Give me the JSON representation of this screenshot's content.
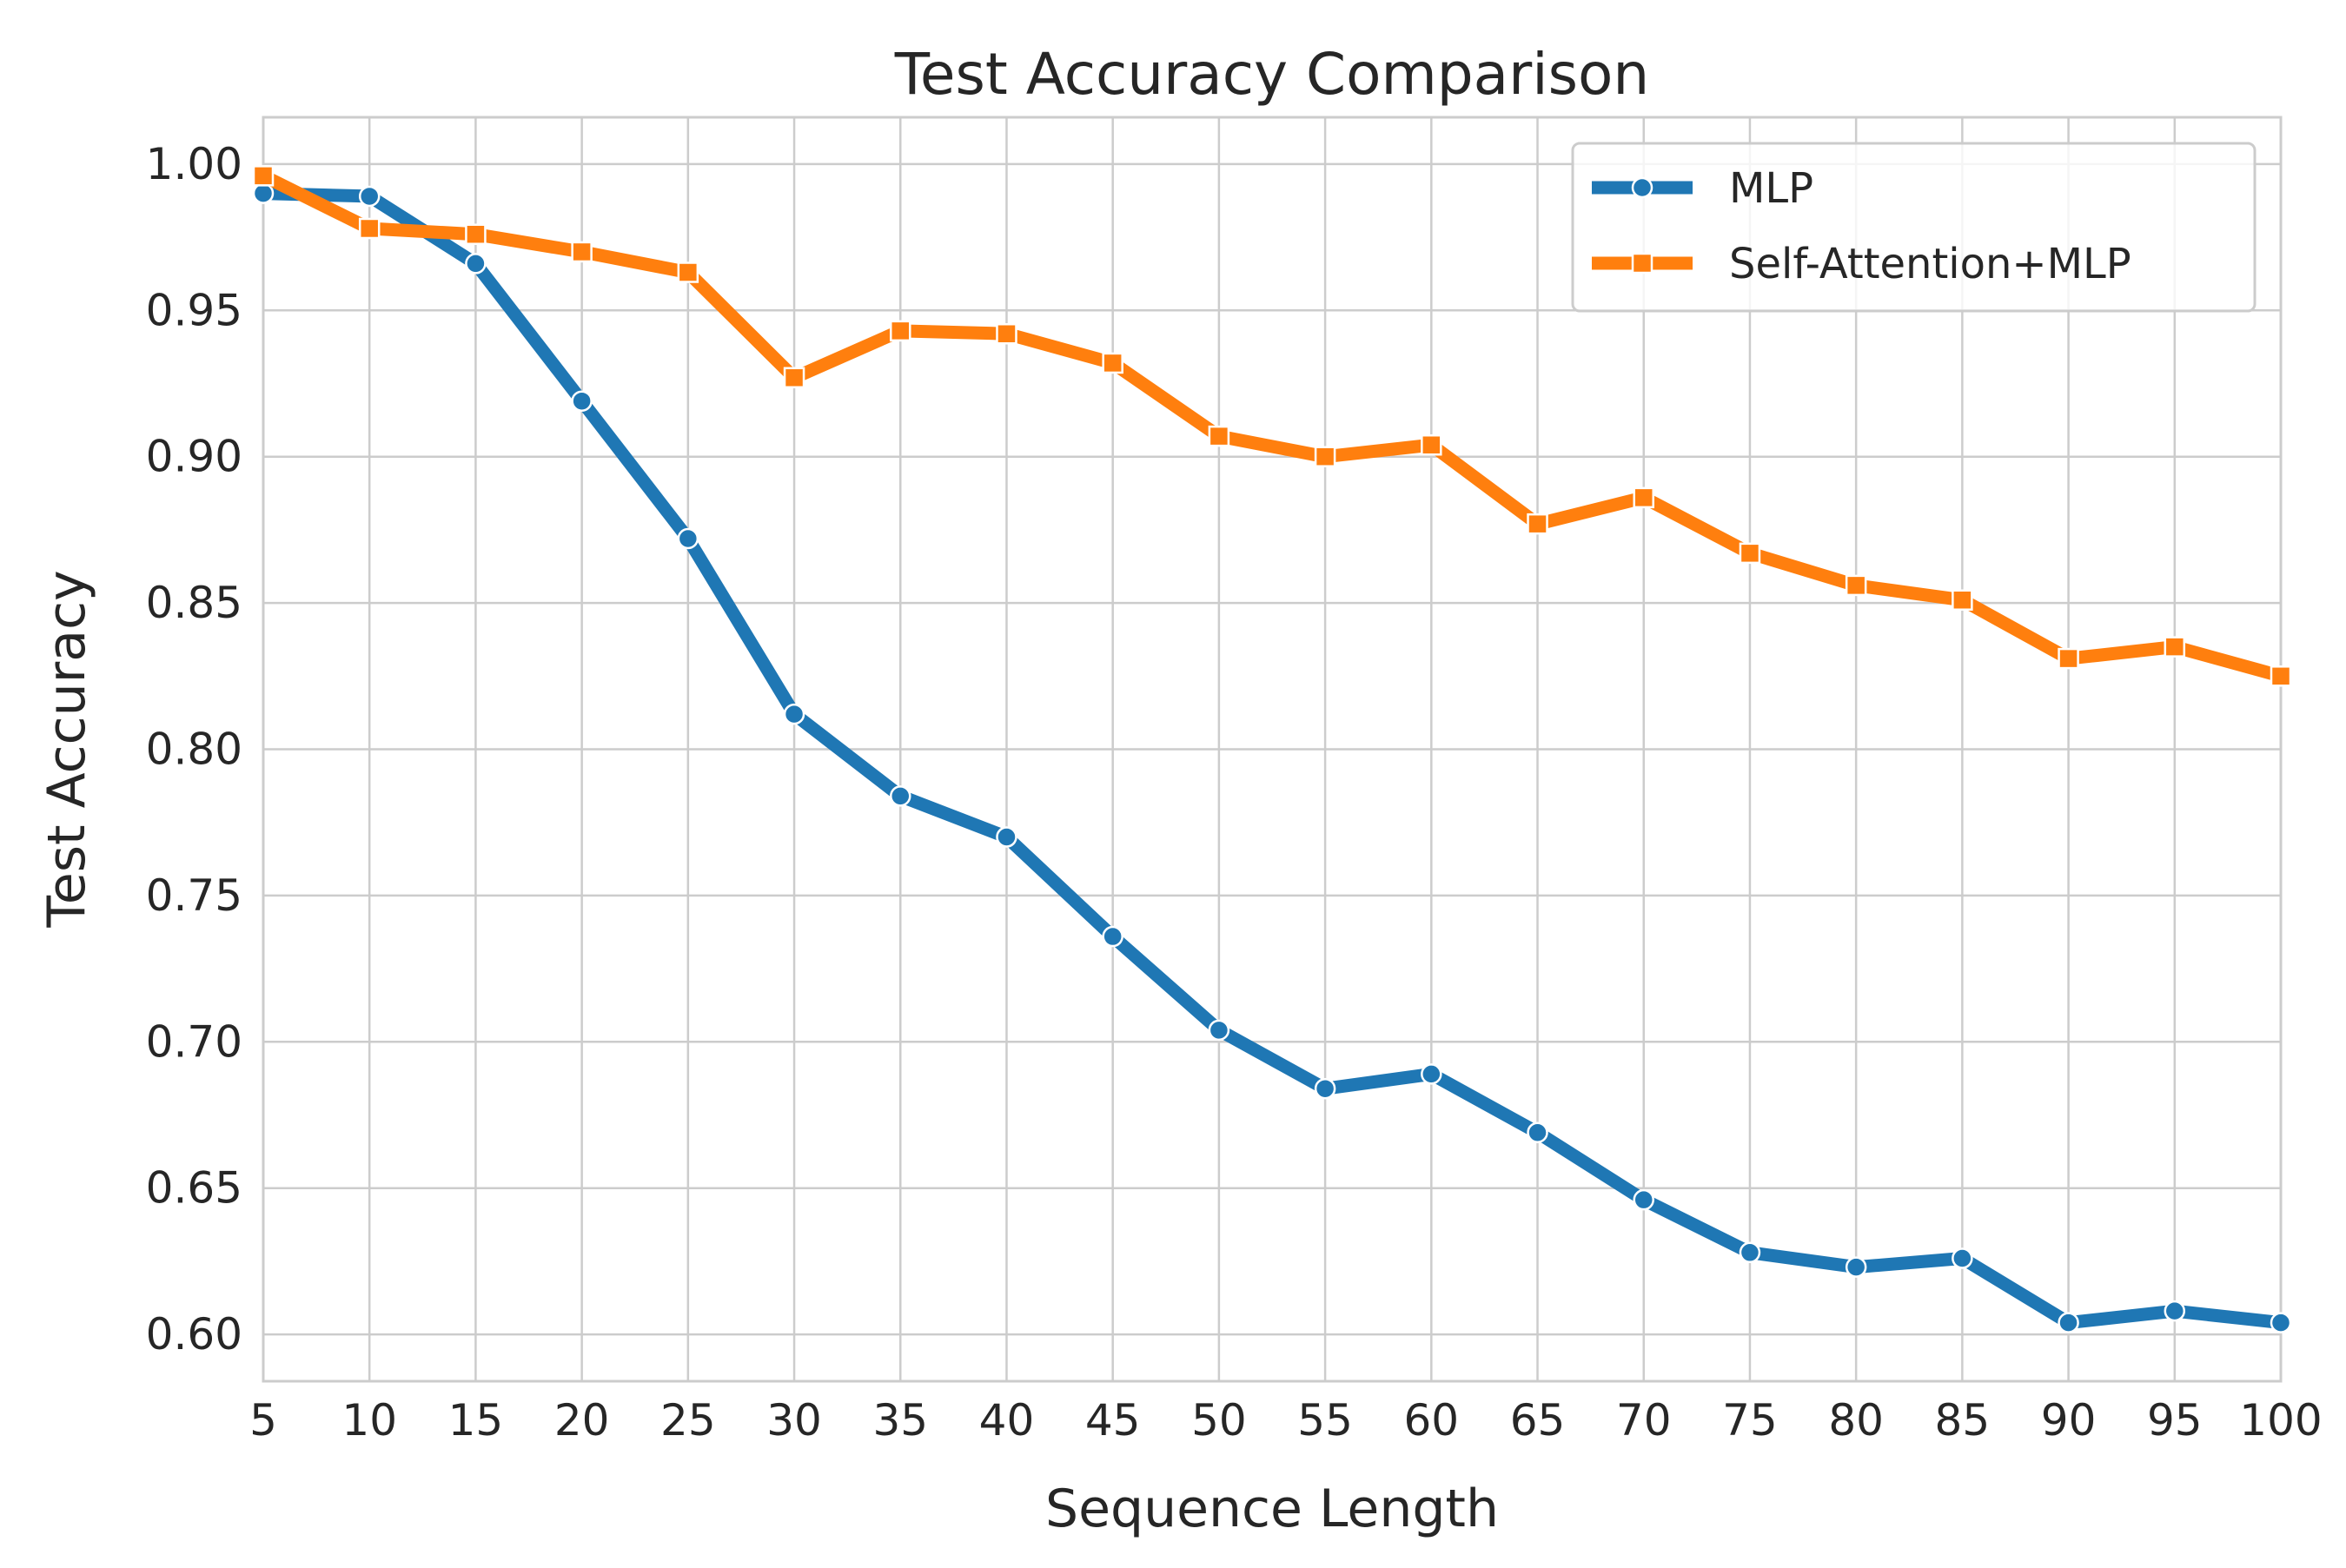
{
  "chart_data": {
    "type": "line",
    "title": "Test Accuracy Comparison",
    "xlabel": "Sequence Length",
    "ylabel": "Test Accuracy",
    "x": [
      5,
      10,
      15,
      20,
      25,
      30,
      35,
      40,
      45,
      50,
      55,
      60,
      65,
      70,
      75,
      80,
      85,
      90,
      95,
      100
    ],
    "xlim": [
      5,
      100
    ],
    "ylim": [
      0.584,
      1.016
    ],
    "xticks": [
      "5",
      "10",
      "15",
      "20",
      "25",
      "30",
      "35",
      "40",
      "45",
      "50",
      "55",
      "60",
      "65",
      "70",
      "75",
      "80",
      "85",
      "90",
      "95",
      "100"
    ],
    "yticks": [
      "0.60",
      "0.65",
      "0.70",
      "0.75",
      "0.80",
      "0.85",
      "0.90",
      "0.95",
      "1.00"
    ],
    "grid": true,
    "legend_position": "top-right",
    "series": [
      {
        "name": "MLP",
        "color": "#1f77b4",
        "marker": "circle",
        "values": [
          0.99,
          0.989,
          0.966,
          0.919,
          0.872,
          0.812,
          0.784,
          0.77,
          0.736,
          0.704,
          0.684,
          0.689,
          0.669,
          0.646,
          0.628,
          0.623,
          0.626,
          0.604,
          0.608,
          0.604
        ]
      },
      {
        "name": "Self-Attention+MLP",
        "color": "#ff7f0e",
        "marker": "square",
        "values": [
          0.996,
          0.978,
          0.976,
          0.97,
          0.963,
          0.927,
          0.943,
          0.942,
          0.932,
          0.907,
          0.9,
          0.904,
          0.877,
          0.886,
          0.867,
          0.856,
          0.851,
          0.831,
          0.835,
          0.825
        ]
      }
    ]
  }
}
